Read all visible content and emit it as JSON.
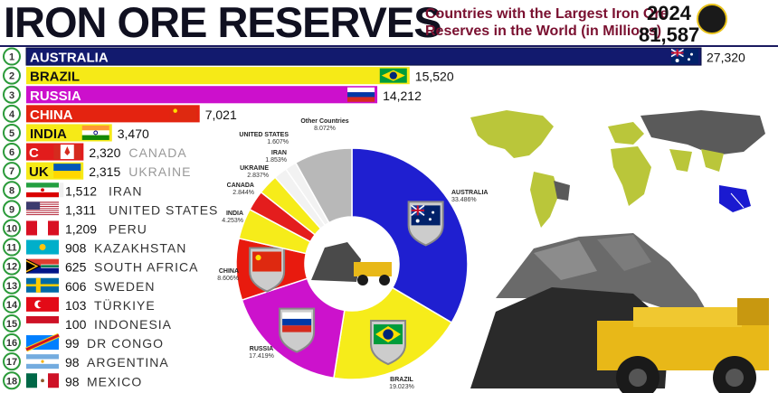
{
  "header": {
    "title": "IRON ORE RESERVES",
    "subtitle_line1": "Countries with the Largest Iron Ore",
    "subtitle_line2": "Reserves in the World (in Millions)",
    "year": "2024",
    "total": "81,587"
  },
  "chart_data": [
    {
      "type": "bar",
      "orientation": "horizontal",
      "title": "Countries with the Largest Iron Ore Reserves in the World (in Millions)",
      "ranks": [
        "1",
        "2",
        "3",
        "4",
        "5",
        "6",
        "7",
        "8",
        "9",
        "10",
        "11",
        "12",
        "13",
        "14",
        "15",
        "16",
        "17",
        "18"
      ],
      "categories": [
        "AUSTRALIA",
        "BRAZIL",
        "RUSSIA",
        "CHINA",
        "INDIA",
        "CANADA",
        "UKRAINE",
        "IRAN",
        "UNITED STATES",
        "PERU",
        "KAZAKHSTAN",
        "SOUTH AFRICA",
        "SWEDEN",
        "TÜRKIYE",
        "INDONESIA",
        "DR CONGO",
        "ARGENTINA",
        "MEXICO"
      ],
      "values": [
        27320,
        15520,
        14212,
        7021,
        3470,
        2320,
        2315,
        1512,
        1311,
        1209,
        908,
        625,
        606,
        103,
        100,
        99,
        98,
        98
      ],
      "value_labels": [
        "27,320",
        "15,520",
        "14,212",
        "7,021",
        "3,470",
        "2,320",
        "2,315",
        "1,512",
        "1,311",
        "1,209",
        "908",
        "625",
        "606",
        "103",
        "100",
        "99",
        "98",
        "98"
      ],
      "bar_colors": [
        "#121a6e",
        "#f6ea17",
        "#cc10cc",
        "#e42310",
        "#f6ea17",
        "#e21c1c",
        "#f6ea17",
        "#f0f0f0",
        "#f0f0f0",
        "#f0f0f0",
        "#f0f0f0",
        "#f0f0f0",
        "#f0f0f0",
        "#f0f0f0",
        "#f0f0f0",
        "#f0f0f0",
        "#f0f0f0",
        "#f0f0f0"
      ],
      "flag_icons": [
        "australia-flag-icon",
        "brazil-flag-icon",
        "russia-flag-icon",
        "china-flag-icon",
        "india-flag-icon",
        "canada-flag-icon",
        "ukraine-flag-icon",
        "iran-flag-icon",
        "usa-flag-icon",
        "peru-flag-icon",
        "kazakhstan-flag-icon",
        "south-africa-flag-icon",
        "sweden-flag-icon",
        "turkiye-flag-icon",
        "indonesia-flag-icon",
        "dr-congo-flag-icon",
        "argentina-flag-icon",
        "mexico-flag-icon"
      ]
    },
    {
      "type": "pie",
      "subtype": "donut",
      "slices": [
        {
          "label": "AUSTRALIA",
          "value": 33.486,
          "text": "33.486%",
          "color": "#1f1fd0"
        },
        {
          "label": "BRAZIL",
          "value": 19.023,
          "text": "19.023%",
          "color": "#f6ec1a"
        },
        {
          "label": "RUSSIA",
          "value": 17.419,
          "text": "17.419%",
          "color": "#cc12cc"
        },
        {
          "label": "CHINA",
          "value": 8.606,
          "text": "8.606%",
          "color": "#e81a0e"
        },
        {
          "label": "INDIA",
          "value": 4.253,
          "text": "4.253%",
          "color": "#f6ec1a"
        },
        {
          "label": "CANADA",
          "value": 2.844,
          "text": "2.844%",
          "color": "#e41d1d"
        },
        {
          "label": "UKRAINE",
          "value": 2.837,
          "text": "2.837%",
          "color": "#f6ec1a"
        },
        {
          "label": "IRAN",
          "value": 1.853,
          "text": "1.853%",
          "color": "#f2f2f2"
        },
        {
          "label": "UNITED STATES",
          "value": 1.607,
          "text": "1.607%",
          "color": "#f2f2f2"
        },
        {
          "label": "Other Countries",
          "value": 8.072,
          "text": "8.072%",
          "color": "#b8b8b8"
        }
      ]
    }
  ]
}
